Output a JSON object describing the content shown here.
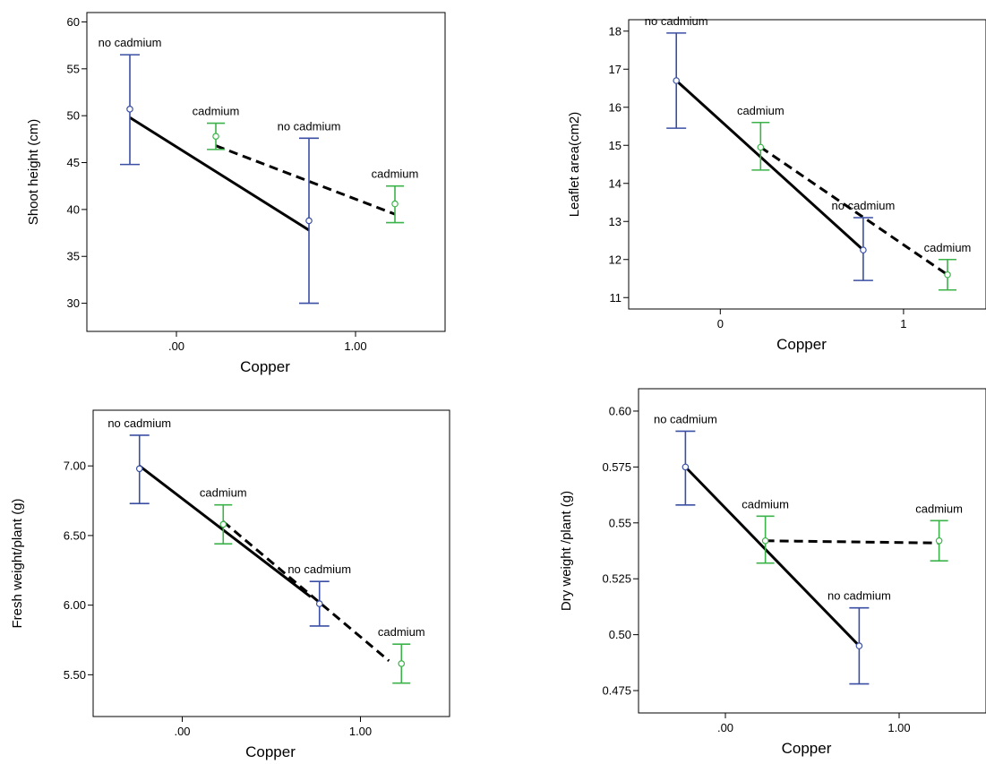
{
  "chart_data": [
    {
      "type": "line",
      "xlabel": "Copper",
      "ylabel": "Shoot height (cm)",
      "xlim": [
        -0.5,
        1.5
      ],
      "ylim": [
        27,
        61
      ],
      "xticks": [
        0,
        1
      ],
      "xtick_labels": [
        ".00",
        "1.00"
      ],
      "yticks": [
        30,
        35,
        40,
        45,
        50,
        55,
        60
      ],
      "ytick_labels": [
        "30",
        "35",
        "40",
        "45",
        "50",
        "55",
        "60"
      ],
      "colors": {
        "no_cadmium": "#3a4fa3",
        "cadmium": "#3cb34a",
        "line": "#000000"
      },
      "series": [
        {
          "name": "no cadmium",
          "style": "solid",
          "points": [
            {
              "x": -0.26,
              "y": 50.7,
              "lo": 44.8,
              "hi": 56.5,
              "label": "no cadmium"
            },
            {
              "x": 0.74,
              "y": 38.8,
              "lo": 30.0,
              "hi": 47.6,
              "label": "no cadmium"
            }
          ]
        },
        {
          "name": "cadmium",
          "style": "dashed",
          "points": [
            {
              "x": 0.22,
              "y": 47.8,
              "lo": 46.4,
              "hi": 49.2,
              "label": "cadmium"
            },
            {
              "x": 1.22,
              "y": 40.6,
              "lo": 38.6,
              "hi": 42.5,
              "label": "cadmium"
            }
          ]
        }
      ],
      "lines": [
        {
          "style": "solid",
          "from": [
            -0.26,
            49.8
          ],
          "to": [
            0.74,
            37.8
          ]
        },
        {
          "style": "dashed",
          "from": [
            0.22,
            46.8
          ],
          "to": [
            1.22,
            39.5
          ]
        }
      ]
    },
    {
      "type": "line",
      "xlabel": "Copper",
      "ylabel": "Leaflet area(cm2)",
      "xlim": [
        -0.5,
        1.45
      ],
      "ylim": [
        10.7,
        18.3
      ],
      "xticks": [
        0,
        1
      ],
      "xtick_labels": [
        "0",
        "1"
      ],
      "yticks": [
        11,
        12,
        13,
        14,
        15,
        16,
        17,
        18
      ],
      "ytick_labels": [
        "11",
        "12",
        "13",
        "14",
        "15",
        "16",
        "17",
        "18"
      ],
      "colors": {
        "no_cadmium": "#3a4fa3",
        "cadmium": "#3cb34a",
        "line": "#000000"
      },
      "series": [
        {
          "name": "no cadmium",
          "style": "solid",
          "points": [
            {
              "x": -0.24,
              "y": 16.7,
              "lo": 15.45,
              "hi": 17.95,
              "label": "no cadmium"
            },
            {
              "x": 0.78,
              "y": 12.25,
              "lo": 11.45,
              "hi": 13.1,
              "label": "no cadmium"
            }
          ]
        },
        {
          "name": "cadmium",
          "style": "dashed",
          "points": [
            {
              "x": 0.22,
              "y": 14.95,
              "lo": 14.35,
              "hi": 15.6,
              "label": "cadmium"
            },
            {
              "x": 1.24,
              "y": 11.6,
              "lo": 11.2,
              "hi": 12.0,
              "label": "cadmium"
            }
          ]
        }
      ],
      "lines": [
        {
          "style": "solid",
          "from": [
            -0.24,
            16.7
          ],
          "to": [
            0.78,
            12.25
          ]
        },
        {
          "style": "dashed",
          "from": [
            0.22,
            14.95
          ],
          "to": [
            1.24,
            11.6
          ]
        }
      ]
    },
    {
      "type": "line",
      "xlabel": "Copper",
      "ylabel": "Fresh weight/plant (g)",
      "xlim": [
        -0.5,
        1.5
      ],
      "ylim": [
        5.2,
        7.4
      ],
      "xticks": [
        0,
        1
      ],
      "xtick_labels": [
        ".00",
        "1.00"
      ],
      "yticks": [
        5.5,
        6.0,
        6.5,
        7.0
      ],
      "ytick_labels": [
        "5.50",
        "6.00",
        "6.50",
        "7.00"
      ],
      "colors": {
        "no_cadmium": "#3a4fa3",
        "cadmium": "#3cb34a",
        "line": "#000000"
      },
      "series": [
        {
          "name": "no cadmium",
          "style": "solid",
          "points": [
            {
              "x": -0.24,
              "y": 6.98,
              "lo": 6.73,
              "hi": 7.22,
              "label": "no cadmium"
            },
            {
              "x": 0.77,
              "y": 6.01,
              "lo": 5.85,
              "hi": 6.17,
              "label": "no cadmium"
            }
          ]
        },
        {
          "name": "cadmium",
          "style": "dashed",
          "points": [
            {
              "x": 0.23,
              "y": 6.58,
              "lo": 6.44,
              "hi": 6.72,
              "label": "cadmium"
            },
            {
              "x": 1.23,
              "y": 5.58,
              "lo": 5.44,
              "hi": 5.72,
              "label": "cadmium"
            }
          ]
        }
      ],
      "lines": [
        {
          "style": "solid",
          "from": [
            -0.24,
            7.0
          ],
          "to": [
            0.72,
            6.06
          ]
        },
        {
          "style": "dashed",
          "from": [
            0.23,
            6.6
          ],
          "to": [
            1.16,
            5.6
          ]
        }
      ]
    },
    {
      "type": "line",
      "xlabel": "Copper",
      "ylabel": "Dry weight /plant (g)",
      "xlim": [
        -0.5,
        1.5
      ],
      "ylim": [
        0.465,
        0.61
      ],
      "xticks": [
        0,
        1
      ],
      "xtick_labels": [
        ".00",
        "1.00"
      ],
      "yticks": [
        0.475,
        0.5,
        0.525,
        0.55,
        0.575,
        0.6
      ],
      "ytick_labels": [
        "0.475",
        "0.50",
        "0.525",
        "0.55",
        "0.575",
        "0.60"
      ],
      "colors": {
        "no_cadmium": "#3a4fa3",
        "cadmium": "#3cb34a",
        "line": "#000000"
      },
      "series": [
        {
          "name": "no cadmium",
          "style": "solid",
          "points": [
            {
              "x": -0.23,
              "y": 0.575,
              "lo": 0.558,
              "hi": 0.591,
              "label": "no cadmium"
            },
            {
              "x": 0.77,
              "y": 0.495,
              "lo": 0.478,
              "hi": 0.512,
              "label": "no cadmium"
            }
          ]
        },
        {
          "name": "cadmium",
          "style": "dashed",
          "points": [
            {
              "x": 0.23,
              "y": 0.542,
              "lo": 0.532,
              "hi": 0.553,
              "label": "cadmium"
            },
            {
              "x": 1.23,
              "y": 0.542,
              "lo": 0.533,
              "hi": 0.551,
              "label": "cadmium"
            }
          ]
        }
      ],
      "lines": [
        {
          "style": "solid",
          "from": [
            -0.23,
            0.575
          ],
          "to": [
            0.77,
            0.495
          ]
        },
        {
          "style": "dashed",
          "from": [
            0.23,
            0.542
          ],
          "to": [
            1.23,
            0.541
          ]
        }
      ]
    }
  ]
}
